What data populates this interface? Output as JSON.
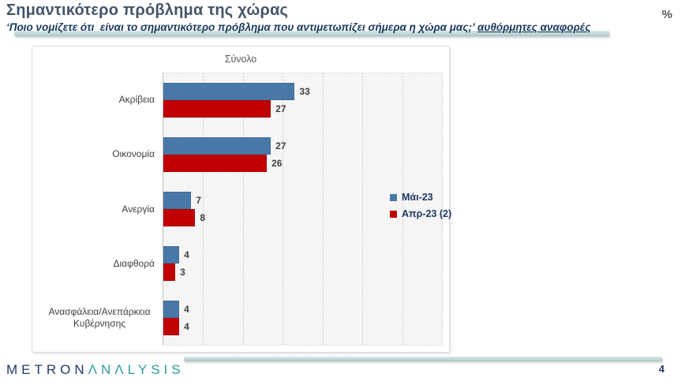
{
  "header": {
    "title": "Σημαντικότερο πρόβλημα της χώρας",
    "subtitle_plain": "‘Ποιο νομίζετε ότι  είναι το σημαντικότερο πρόβλημα που αντιμετωπίζει σήμερα η χώρα μας;’ ",
    "subtitle_underlined": "αυθόρμητες αναφορές",
    "percent_label": "%"
  },
  "chart_data": {
    "type": "bar",
    "orientation": "horizontal",
    "title": "Σύνολο",
    "categories": [
      "Ακρίβεια",
      "Οικονομία",
      "Ανεργία",
      "Διαφθορά",
      "Ανασφάλεια/Ανεπάρκεια Κυβέρνησης"
    ],
    "series": [
      {
        "name": "Μάι-23",
        "color": "#4878A8",
        "values": [
          33,
          27,
          7,
          4,
          4
        ]
      },
      {
        "name": "Απρ-23 (2)",
        "color": "#C00000",
        "values": [
          27,
          26,
          8,
          3,
          4
        ]
      }
    ],
    "xlim": [
      0,
      70
    ],
    "gridline_step": 10,
    "grid": true,
    "legend_position": "right-middle",
    "value_labels": true
  },
  "colors": {
    "accent_teal_bar": "#B9D2D3",
    "title_text": "#44546A",
    "subtitle_text": "#17375D",
    "value_label_text": "#404040",
    "legend_text": "#1F3864"
  },
  "footer": {
    "logo_metron": "METRON",
    "logo_analysis": "ΛNΛLYSIS",
    "page_number": "4"
  }
}
